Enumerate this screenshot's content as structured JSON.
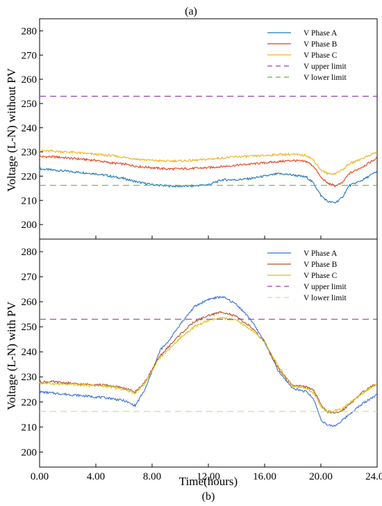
{
  "captions": {
    "a": "(a)",
    "b": "(b)"
  },
  "xlabel": "Time(hours)",
  "chart_data": [
    {
      "type": "line",
      "panel": "a",
      "title": "",
      "xlabel": "",
      "ylabel": "Voltage (L-N) without PV",
      "xlim": [
        0,
        24
      ],
      "ylim": [
        194,
        285
      ],
      "yticks": [
        200,
        210,
        220,
        230,
        240,
        250,
        260,
        270,
        280
      ],
      "grid": false,
      "legend": "top-right",
      "series": [
        {
          "name": "V Phase A",
          "color": "#1f77b4",
          "dash": false,
          "x": [
            0,
            1,
            2,
            3,
            4,
            5,
            6,
            7,
            8,
            9,
            10,
            11,
            12,
            13,
            14,
            15,
            16,
            17,
            18,
            19,
            19.5,
            20,
            20.5,
            21,
            21.5,
            22,
            23,
            24
          ],
          "y": [
            223,
            222.5,
            222,
            221.5,
            221,
            220,
            219,
            217.5,
            216.5,
            216,
            215.8,
            216,
            216.5,
            218.5,
            218.5,
            219,
            220,
            221,
            220.5,
            219.5,
            217,
            212,
            209.5,
            209,
            211,
            216,
            218.5,
            222
          ]
        },
        {
          "name": "V Phase B",
          "color": "#e2401a",
          "dash": false,
          "x": [
            0,
            1,
            2,
            3,
            4,
            5,
            6,
            7,
            8,
            9,
            10,
            11,
            12,
            13,
            14,
            15,
            16,
            17,
            18,
            19,
            19.5,
            20,
            20.5,
            21,
            21.5,
            22,
            23,
            24
          ],
          "y": [
            228,
            228,
            227.5,
            227,
            226.5,
            225.5,
            225,
            224,
            223.5,
            223,
            223,
            223.2,
            223.5,
            224,
            224.5,
            225,
            225.5,
            226,
            226.5,
            226,
            224,
            219.5,
            217,
            216,
            217,
            221,
            224,
            227.5
          ]
        },
        {
          "name": "V Phase C",
          "color": "#f0b21a",
          "dash": false,
          "x": [
            0,
            1,
            2,
            3,
            4,
            5,
            6,
            7,
            8,
            9,
            10,
            11,
            12,
            13,
            14,
            15,
            16,
            17,
            18,
            19,
            19.5,
            20,
            20.5,
            21,
            21.5,
            22,
            23,
            24
          ],
          "y": [
            230.5,
            230.3,
            230,
            229.5,
            229,
            228.5,
            227.8,
            227,
            226.5,
            226.2,
            226.3,
            226.5,
            227,
            227.5,
            228,
            228.2,
            228.5,
            229,
            229,
            228.5,
            226.5,
            222.5,
            221,
            221,
            222.5,
            225,
            227.5,
            230
          ]
        },
        {
          "name": "V upper limit",
          "color": "#8e44ad",
          "dash": true,
          "x": [
            0,
            24
          ],
          "y": [
            253,
            253
          ]
        },
        {
          "name": "V lower limit",
          "color": "#6ab04c",
          "dash": true,
          "x": [
            0,
            24
          ],
          "y": [
            216.2,
            216.2
          ]
        }
      ]
    },
    {
      "type": "line",
      "panel": "b",
      "title": "",
      "xlabel": "Time(hours)",
      "ylabel": "Voltage (L-N) with PV",
      "xlim": [
        0,
        24
      ],
      "ylim": [
        194,
        285
      ],
      "xticks": [
        0,
        4,
        8,
        12,
        16,
        20,
        24
      ],
      "xticklabels": [
        "0.00",
        "4.00",
        "8.00",
        "12.00",
        "16.00",
        "20.00",
        "24.00"
      ],
      "yticks": [
        200,
        210,
        220,
        230,
        240,
        250,
        260,
        270,
        280
      ],
      "grid": false,
      "legend": "top-right",
      "series": [
        {
          "name": "V Phase A",
          "color": "#3a6fd8",
          "dash": false,
          "x": [
            0,
            1,
            2,
            3,
            4,
            5,
            6,
            6.8,
            7.5,
            8.2,
            8.6,
            9,
            10,
            11,
            12,
            13,
            14,
            15,
            16,
            17,
            18,
            19,
            19.5,
            20,
            20.5,
            21,
            21.5,
            22,
            23,
            24
          ],
          "y": [
            224,
            223.5,
            223,
            222.5,
            222,
            221.5,
            220.5,
            218.5,
            225,
            235,
            241,
            243,
            251,
            258,
            261,
            262,
            259,
            253,
            244,
            232,
            225.5,
            224,
            221,
            213,
            210.5,
            210.5,
            212.5,
            215,
            219.5,
            223
          ]
        },
        {
          "name": "V Phase B",
          "color": "#b5502a",
          "dash": false,
          "x": [
            0,
            1,
            2,
            3,
            4,
            5,
            6,
            6.8,
            7.5,
            8.2,
            8.6,
            9,
            10,
            11,
            12,
            13,
            14,
            15,
            16,
            17,
            18,
            19,
            19.5,
            20,
            20.5,
            21,
            21.5,
            22,
            23,
            24
          ],
          "y": [
            228,
            228,
            227.5,
            227,
            227,
            226.5,
            225.5,
            224,
            228,
            235,
            238.5,
            241,
            247,
            252,
            254.5,
            256,
            254,
            250,
            244,
            233,
            226.5,
            226,
            224.5,
            219,
            216,
            215.5,
            216.5,
            219,
            224,
            227.5
          ]
        },
        {
          "name": "V Phase C",
          "color": "#d9c21a",
          "dash": false,
          "x": [
            0,
            1,
            2,
            3,
            4,
            5,
            6,
            6.8,
            7.5,
            8.2,
            8.6,
            9,
            10,
            11,
            12,
            13,
            14,
            15,
            16,
            17,
            18,
            19,
            19.5,
            20,
            20.5,
            21,
            21.5,
            22,
            23,
            24
          ],
          "y": [
            227.5,
            227.3,
            227,
            226.8,
            226.5,
            226,
            225,
            223.5,
            227.5,
            234.5,
            238,
            240,
            245.5,
            250,
            252.5,
            253.5,
            252.5,
            249,
            244,
            234,
            226,
            225.5,
            223.5,
            218,
            216,
            216.5,
            217,
            219.5,
            223.5,
            227.5
          ]
        },
        {
          "name": "V upper limit",
          "color": "#8e44ad",
          "dash": true,
          "x": [
            0,
            24
          ],
          "y": [
            253,
            253
          ]
        },
        {
          "name": "V lower limit",
          "color": "#c3e0a6",
          "dash": true,
          "x": [
            0,
            24
          ],
          "y": [
            216.2,
            216.2
          ]
        }
      ]
    }
  ]
}
